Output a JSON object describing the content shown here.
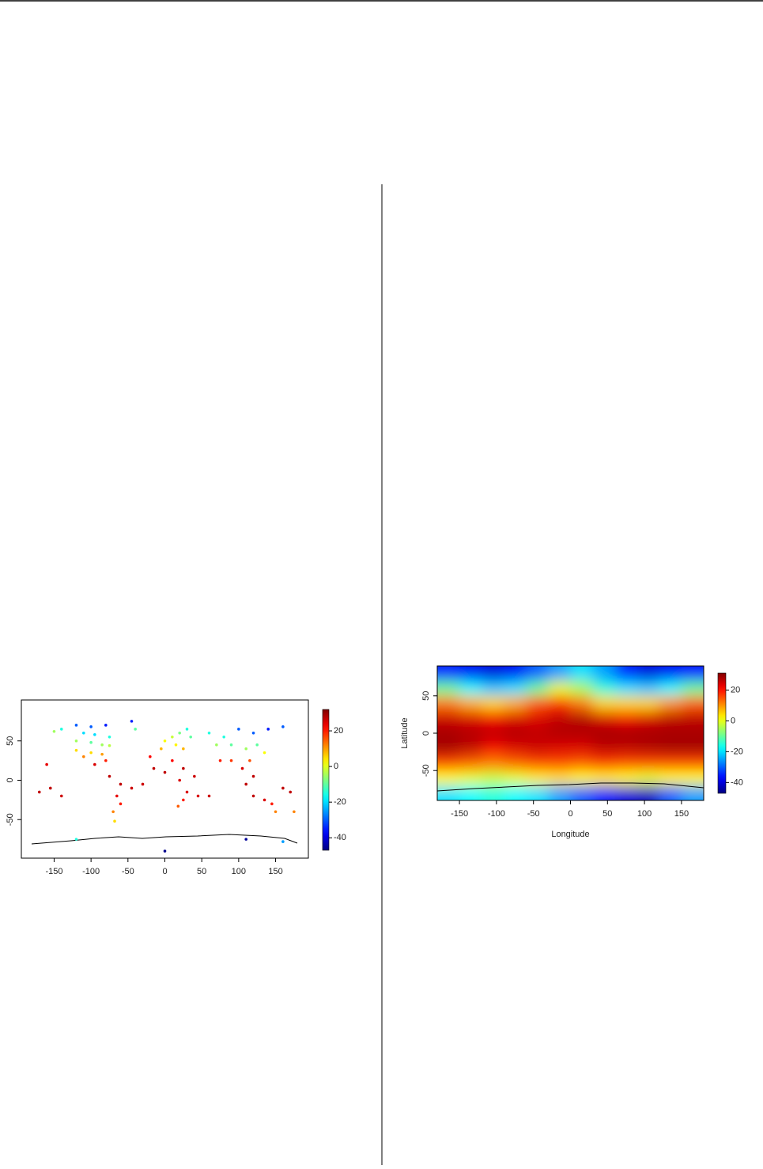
{
  "chart_data": [
    {
      "type": "scatter",
      "colormap": "jet",
      "x": [
        -150,
        -140,
        -120,
        -100,
        -80,
        -110,
        -95,
        -75,
        -120,
        -100,
        -85,
        -75,
        -120,
        -100,
        -85,
        -110,
        -95,
        -80,
        -160,
        -155,
        -170,
        -140,
        -75,
        -60,
        -45,
        -65,
        -60,
        -70,
        -68,
        -45,
        -40,
        0,
        10,
        20,
        30,
        -5,
        15,
        25,
        35,
        60,
        80,
        100,
        120,
        140,
        160,
        70,
        90,
        110,
        125,
        135,
        75,
        90,
        105,
        115,
        120,
        110,
        -15,
        0,
        10,
        25,
        40,
        20,
        30,
        25,
        18,
        45,
        120,
        135,
        145,
        150,
        175,
        170,
        160,
        -120,
        0,
        110,
        160,
        -30,
        60,
        -20
      ],
      "y": [
        62,
        65,
        70,
        68,
        70,
        60,
        58,
        55,
        50,
        48,
        45,
        44,
        38,
        35,
        33,
        30,
        20,
        25,
        20,
        -10,
        -15,
        -20,
        5,
        -5,
        -10,
        -20,
        -30,
        -40,
        -52,
        75,
        65,
        50,
        55,
        60,
        65,
        40,
        45,
        40,
        55,
        60,
        55,
        65,
        60,
        65,
        68,
        45,
        45,
        40,
        45,
        35,
        25,
        25,
        15,
        25,
        5,
        -5,
        15,
        10,
        25,
        15,
        5,
        0,
        -15,
        -25,
        -33,
        -20,
        -20,
        -25,
        -30,
        -40,
        -40,
        -15,
        -10,
        -75,
        -90,
        -75,
        -78,
        -5,
        -20,
        30
      ],
      "values": [
        -5,
        -15,
        -30,
        -30,
        -35,
        -20,
        -20,
        -15,
        -5,
        -10,
        -5,
        -3,
        5,
        5,
        10,
        12,
        25,
        20,
        24,
        27,
        27,
        26,
        27,
        27,
        26,
        24,
        20,
        12,
        5,
        -35,
        -10,
        2,
        -2,
        -8,
        -15,
        8,
        3,
        8,
        -10,
        -15,
        -15,
        -30,
        -30,
        -35,
        -30,
        -5,
        -10,
        -5,
        -10,
        2,
        20,
        18,
        25,
        16,
        27,
        27,
        27,
        27,
        22,
        27,
        26,
        25,
        25,
        20,
        15,
        25,
        27,
        25,
        20,
        12,
        12,
        27,
        27,
        -15,
        -46,
        -45,
        -25,
        26,
        26,
        22
      ],
      "xlim": [
        -194.4,
        194.4
      ],
      "ylim": [
        -99,
        102
      ],
      "xticks": [
        -150,
        -100,
        -50,
        0,
        50,
        100,
        150
      ],
      "yticks": [
        -50,
        0,
        50
      ],
      "colorlim": [
        -47,
        32
      ],
      "colorticks": [
        -40,
        -20,
        0,
        20
      ]
    },
    {
      "type": "heatmap",
      "colormap": "jet",
      "xlabel": "Longitude",
      "ylabel": "Latitude",
      "x": [
        -165,
        -135,
        -105,
        -75,
        -45,
        -15,
        15,
        45,
        75,
        105,
        135,
        165
      ],
      "y": [
        80,
        60,
        40,
        20,
        0,
        -20,
        -40,
        -60,
        -80
      ],
      "values": [
        [
          -35,
          -38,
          -40,
          -38,
          -30,
          -25,
          -20,
          -25,
          -35,
          -40,
          -38,
          -36
        ],
        [
          -10,
          -18,
          -22,
          -20,
          -10,
          0,
          -5,
          -15,
          -20,
          -22,
          -18,
          -10
        ],
        [
          12,
          8,
          5,
          8,
          15,
          18,
          12,
          5,
          5,
          5,
          10,
          14
        ],
        [
          25,
          24,
          22,
          24,
          24,
          26,
          27,
          24,
          22,
          24,
          26,
          26
        ],
        [
          28,
          27,
          26,
          27,
          26,
          27,
          27,
          28,
          28,
          28,
          28,
          28
        ],
        [
          28,
          26,
          22,
          24,
          25,
          24,
          24,
          26,
          26,
          27,
          28,
          28
        ],
        [
          16,
          14,
          12,
          14,
          16,
          16,
          15,
          17,
          16,
          16,
          16,
          16
        ],
        [
          2,
          0,
          -2,
          0,
          3,
          4,
          2,
          3,
          2,
          0,
          2,
          2
        ],
        [
          -20,
          -18,
          -15,
          -18,
          -20,
          -25,
          -30,
          -35,
          -40,
          -42,
          -30,
          -25
        ]
      ],
      "xlim": [
        -180,
        180
      ],
      "ylim": [
        -90,
        90
      ],
      "xticks": [
        -150,
        -100,
        -50,
        0,
        50,
        100,
        150
      ],
      "yticks": [
        -50,
        0,
        50
      ],
      "colorlim": [
        -47,
        31
      ],
      "colorticks": [
        -40,
        -20,
        0,
        20
      ]
    }
  ]
}
